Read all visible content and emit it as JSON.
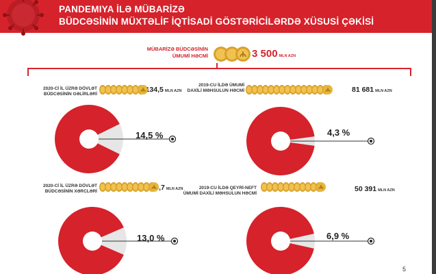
{
  "header": {
    "line1": "PANDEMIYA İLƏ MÜBARİZƏ",
    "line2": "BÜDCƏSİNİN MÜXTƏLİF İQTİSADİ GÖSTƏRİCİLƏRDƏ XÜSUSİ ÇƏKİSİ"
  },
  "total": {
    "label_line1": "MÜBARİZƏ BÜDCƏSİNİN",
    "label_line2": "ÜMUMİ HƏCMİ",
    "value": "3 500",
    "unit": "MLN AZN"
  },
  "colors": {
    "red": "#d6222b",
    "grey": "#e6e6e6",
    "coin": "#e7b53a"
  },
  "icons": [
    "virus-icon",
    "coin-icon",
    "target-icon"
  ],
  "chart_data": [
    {
      "type": "pie",
      "label_line1": "2020-Cİ İL ÜZRƏ DÖVLƏT",
      "label_line2": "BÜDCƏSİNİN GƏLİRLƏRİ",
      "value": "24 134,5",
      "unit": "MLN AZN",
      "share_label": "14,5 %",
      "share": 14.5
    },
    {
      "type": "pie",
      "label_line1": "2019-CU İLDƏ ÜMUMİ",
      "label_line2": "DAXİLİ MƏHSULUN HƏCMİ",
      "value": "81 681",
      "unit": "MLN AZN",
      "share_label": "4,3 %",
      "share": 4.3
    },
    {
      "type": "pie",
      "label_line1": "2020-Cİ İL ÜZRƏ DÖVLƏT",
      "label_line2": "BÜDCƏSİNİN XƏRCLƏRİ",
      "value": "26 894,7",
      "unit": "MLN AZN",
      "share_label": "13,0 %",
      "share": 13.0
    },
    {
      "type": "pie",
      "label_line1": "2019-CU İLDƏ QEYRİ-NEFT",
      "label_line2": "ÜMUMİ DAXİLİ MƏHSULUN HƏCMİ",
      "value": "50 391",
      "unit": "MLN AZN",
      "share_label": "6,9 %",
      "share": 6.9
    }
  ],
  "page_number": "5"
}
